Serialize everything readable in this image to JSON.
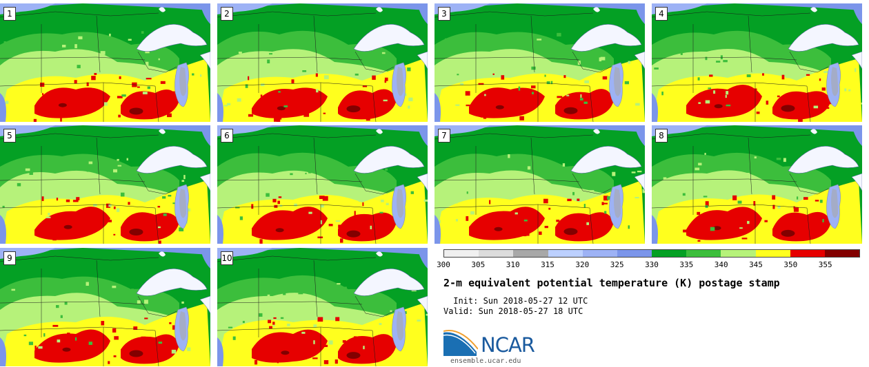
{
  "panels": [
    {
      "label": "1"
    },
    {
      "label": "2"
    },
    {
      "label": "3"
    },
    {
      "label": "4"
    },
    {
      "label": "5"
    },
    {
      "label": "6"
    },
    {
      "label": "7"
    },
    {
      "label": "8"
    },
    {
      "label": "9"
    },
    {
      "label": "10"
    }
  ],
  "colorbar": {
    "ticks": [
      "300",
      "305",
      "310",
      "315",
      "320",
      "325",
      "330",
      "335",
      "340",
      "345",
      "350",
      "355"
    ],
    "colors": [
      "#f0f0f0",
      "#dcdcdc",
      "#a8a8a8",
      "#bcd0ff",
      "#9db2f5",
      "#7b95ea",
      "#04a024",
      "#3cbe3c",
      "#b6f27a",
      "#ffff1e",
      "#e60000",
      "#820000"
    ]
  },
  "title": "2-m equivalent potential temperature (K) postage stamp",
  "init": " Init: Sun 2018-05-27 12 UTC",
  "valid": "Valid: Sun 2018-05-27 18 UTC",
  "logo_text": "NCAR",
  "website": "ensemble.ucar.edu"
}
